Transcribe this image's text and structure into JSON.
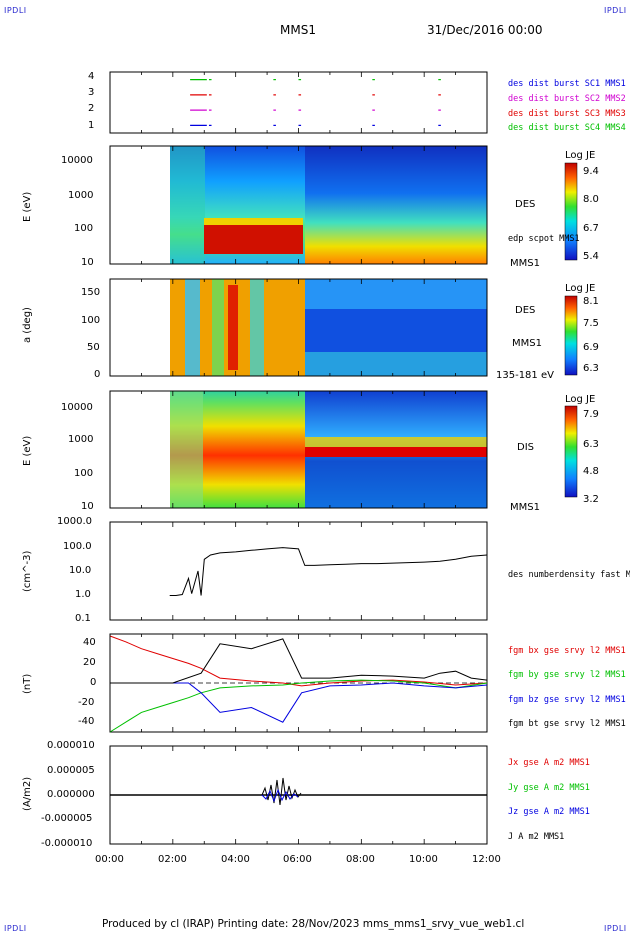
{
  "header": {
    "corner_label": "IPDLI",
    "spacecraft": "MMS1",
    "datetime": "31/Dec/2016 00:00"
  },
  "footer": {
    "text": "Produced by cl (IRAP)   Printing date: 28/Nov/2023   mms_mms1_srvy_vue_web1.cl"
  },
  "colors": {
    "red": "#e00000",
    "green": "#00c000",
    "blue": "#0000e0",
    "magenta": "#d000d0",
    "black": "#000000",
    "bg_blue": "#1428c8"
  },
  "chart_data": [
    {
      "type": "timeline",
      "panel": "burst",
      "ylim": [
        0.5,
        4.5
      ],
      "yticks": [
        "1",
        "2",
        "3",
        "4"
      ],
      "series": [
        {
          "name": "des dist burst SC1 MMS1",
          "row": 1,
          "color": "#0000e0"
        },
        {
          "name": "des dist burst SC2 MMS2",
          "row": 2,
          "color": "#d000d0"
        },
        {
          "name": "des dist burst SC3 MMS3",
          "row": 3,
          "color": "#e00000"
        },
        {
          "name": "des dist burst SC4 MMS4",
          "row": 4,
          "color": "#00c000"
        }
      ],
      "burst_intervals_hours": [
        [
          2.55,
          3.05
        ],
        [
          3.15,
          3.2
        ],
        [
          5.2,
          5.25
        ],
        [
          6.0,
          6.05
        ],
        [
          8.35,
          8.4
        ],
        [
          10.45,
          10.5
        ]
      ]
    },
    {
      "type": "heatmap",
      "panel": "des_energy",
      "ylabel": "E (eV)",
      "scale": "log",
      "ylim": [
        10,
        25000
      ],
      "yticks": [
        "10",
        "100",
        "1000",
        "10000"
      ],
      "colorbar": {
        "title": "Log JE",
        "ticks": [
          "9.4",
          "8.0",
          "6.7",
          "5.4"
        ]
      },
      "right_labels": [
        "DES",
        "MMS1"
      ],
      "overlay": "edp scpot MMS1"
    },
    {
      "type": "heatmap",
      "panel": "des_pitch",
      "ylabel": "a (deg)",
      "ylim": [
        0,
        180
      ],
      "yticks": [
        "0",
        "50",
        "100",
        "150"
      ],
      "colorbar": {
        "title": "Log JE",
        "ticks": [
          "8.1",
          "7.5",
          "6.9",
          "6.3"
        ]
      },
      "right_labels": [
        "DES",
        "MMS1",
        "135-181 eV"
      ]
    },
    {
      "type": "heatmap",
      "panel": "dis_energy",
      "ylabel": "E (eV)",
      "scale": "log",
      "ylim": [
        10,
        25000
      ],
      "yticks": [
        "10",
        "100",
        "1000",
        "10000"
      ],
      "colorbar": {
        "title": "Log JE",
        "ticks": [
          "7.9",
          "6.3",
          "4.8",
          "3.2"
        ]
      },
      "right_labels": [
        "DIS",
        "MMS1"
      ]
    },
    {
      "type": "line",
      "panel": "density",
      "ylabel": "(cm^-3)",
      "scale": "log",
      "ylim": [
        0.1,
        1000
      ],
      "yticks": [
        "0.1",
        "1.0",
        "10.0",
        "100.0",
        "1000.0"
      ],
      "series": [
        {
          "name": "des numberdensity fast M",
          "color": "#000000",
          "x": [
            1.9,
            2.1,
            2.3,
            2.5,
            2.6,
            2.8,
            2.9,
            3.0,
            3.2,
            3.5,
            4.0,
            4.5,
            5.0,
            5.5,
            6.0,
            6.2,
            6.5,
            7.0,
            7.5,
            8.0,
            8.5,
            9.0,
            9.5,
            10.0,
            10.5,
            11.0,
            11.5,
            12.0
          ],
          "y": [
            1.0,
            1.0,
            1.1,
            5,
            1.2,
            10,
            1.0,
            30,
            45,
            55,
            60,
            70,
            80,
            90,
            80,
            17,
            17,
            18,
            19,
            20,
            20,
            21,
            22,
            23,
            25,
            30,
            40,
            45
          ]
        }
      ]
    },
    {
      "type": "line",
      "panel": "magnetic_field",
      "ylabel": "(nT)",
      "ylim": [
        -50,
        50
      ],
      "yticks": [
        "-40",
        "-20",
        "0",
        "20",
        "40"
      ],
      "series": [
        {
          "name": "fgm bx gse srvy l2 MMS1",
          "color": "#e00000",
          "x": [
            0.0,
            0.5,
            1.0,
            1.5,
            2.0,
            2.5,
            2.9,
            3.5,
            4.5,
            5.5,
            6.1,
            7.0,
            8.0,
            9.0,
            10.0,
            11.0,
            12.0
          ],
          "y": [
            48,
            42,
            35,
            30,
            25,
            20,
            15,
            5,
            2,
            0,
            -3,
            0,
            2,
            3,
            1,
            -2,
            0
          ]
        },
        {
          "name": "fgm by gse srvy l2 MMS1",
          "color": "#00c000",
          "x": [
            0.0,
            0.5,
            1.0,
            1.5,
            2.0,
            2.5,
            2.9,
            3.5,
            4.5,
            5.5,
            6.1,
            7.0,
            8.0,
            9.0,
            10.0,
            11.0,
            12.0
          ],
          "y": [
            -50,
            -40,
            -30,
            -25,
            -20,
            -15,
            -10,
            -5,
            -3,
            -2,
            0,
            2,
            3,
            2,
            0,
            -5,
            0
          ]
        },
        {
          "name": "fgm bz gse srvy l2 MMS1",
          "color": "#0000e0",
          "x": [
            0.0,
            1.0,
            2.0,
            2.5,
            2.9,
            3.5,
            4.5,
            5.5,
            6.1,
            7.0,
            8.0,
            9.0,
            10.0,
            11.0,
            12.0
          ],
          "y": [
            0,
            0,
            0,
            0,
            -10,
            -30,
            -25,
            -40,
            -10,
            -3,
            -2,
            0,
            -3,
            -5,
            -2
          ]
        },
        {
          "name": "fgm bt gse srvy l2 MMS1",
          "color": "#000000",
          "x": [
            0.0,
            1.0,
            2.0,
            2.9,
            3.5,
            4.5,
            5.5,
            6.1,
            7.0,
            8.0,
            9.0,
            10.0,
            10.5,
            11.0,
            11.5,
            12.0
          ],
          "y": [
            0,
            0,
            0,
            10,
            40,
            35,
            45,
            5,
            5,
            8,
            7,
            5,
            10,
            12,
            5,
            3
          ]
        }
      ]
    },
    {
      "type": "line",
      "panel": "current_density",
      "ylabel": "(A/m2)",
      "ylim": [
        -1e-05,
        1e-05
      ],
      "yticks": [
        "-0.000010",
        "-0.000005",
        "0.000000",
        "0.000005",
        "0.000010"
      ],
      "xlabel": "",
      "xticks": [
        "00:00",
        "02:00",
        "04:00",
        "06:00",
        "08:00",
        "10:00",
        "12:00"
      ],
      "xlim_hours": [
        0,
        12
      ],
      "series": [
        {
          "name": "Jx gse A m2 MMS1",
          "color": "#e00000"
        },
        {
          "name": "Jy gse A m2 MMS1",
          "color": "#00c000"
        },
        {
          "name": "Jz gse A m2 MMS1",
          "color": "#0000e0"
        },
        {
          "name": "J A m2 MMS1",
          "color": "#000000"
        }
      ]
    }
  ]
}
